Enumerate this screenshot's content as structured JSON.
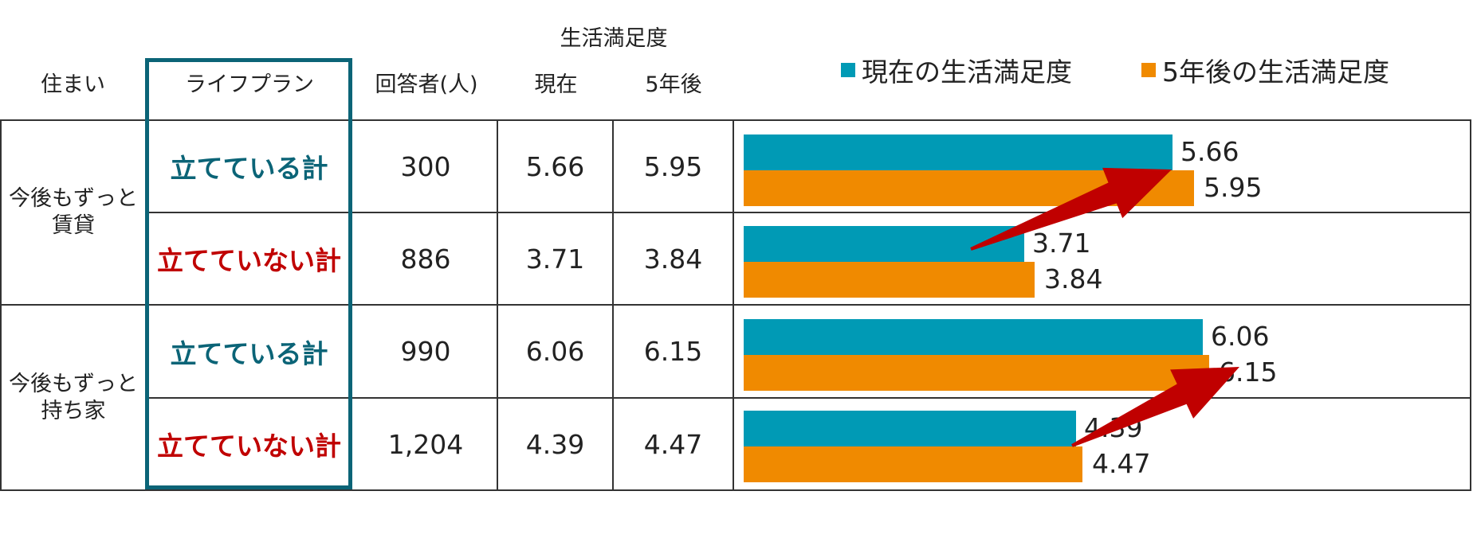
{
  "headers": {
    "group_title": "生活満足度",
    "housing": "住まい",
    "lifeplan": "ライフプラン",
    "respondents": "回答者(人)",
    "current": "現在",
    "future": "5年後"
  },
  "legend": {
    "current": "現在の生活満足度",
    "future": "5年後の生活満足度"
  },
  "colors": {
    "current": "#009ab5",
    "future": "#f08a00",
    "plan_yes": "#0b6477",
    "plan_no": "#c00000",
    "highlight_box": "#0b6477",
    "arrow": "#c00000"
  },
  "groups": [
    {
      "housing": "今後もずっと\n賃貸",
      "rows": [
        {
          "lifeplan": "立てている計",
          "respondents": "300",
          "current": "5.66",
          "future": "5.95"
        },
        {
          "lifeplan": "立てていない計",
          "respondents": "886",
          "current": "3.71",
          "future": "3.84"
        }
      ]
    },
    {
      "housing": "今後もずっと\n持ち家",
      "rows": [
        {
          "lifeplan": "立てている計",
          "respondents": "990",
          "current": "6.06",
          "future": "6.15"
        },
        {
          "lifeplan": "立てていない計",
          "respondents": "1,204",
          "current": "4.39",
          "future": "4.47"
        }
      ]
    }
  ],
  "chart_data": {
    "type": "bar",
    "orientation": "horizontal",
    "categories": [
      "今後もずっと賃貸 立てている計",
      "今後もずっと賃貸 立てていない計",
      "今後もずっと持ち家 立てている計",
      "今後もずっと持ち家 立てていない計"
    ],
    "series": [
      {
        "name": "現在の生活満足度",
        "values": [
          5.66,
          3.71,
          6.06,
          4.39
        ]
      },
      {
        "name": "5年後の生活満足度",
        "values": [
          5.95,
          3.84,
          6.15,
          4.47
        ]
      }
    ],
    "data_labels": [
      [
        "5.66",
        "3.71",
        "6.06",
        "4.39"
      ],
      [
        "5.95",
        "3.84",
        "6.15",
        "4.47"
      ]
    ],
    "title": "",
    "xlabel": "",
    "ylabel": "",
    "legend_position": "top",
    "grid": false
  }
}
